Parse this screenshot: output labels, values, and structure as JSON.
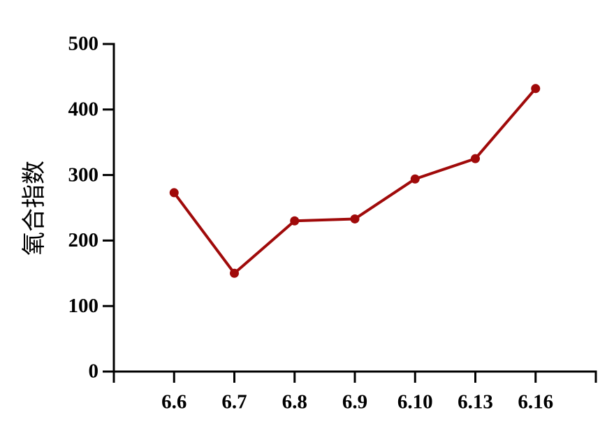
{
  "chart_data": {
    "type": "line",
    "y_label": "氧合指数",
    "categories": [
      "6.6",
      "6.7",
      "6.8",
      "6.9",
      "6.10",
      "6.13",
      "6.16"
    ],
    "series": [
      {
        "name": "氧合指数",
        "color": "#a00a0a",
        "values": [
          273,
          150,
          230,
          233,
          294,
          325,
          432
        ]
      }
    ],
    "ylim": [
      0,
      500
    ],
    "yticks": [
      0,
      100,
      200,
      300,
      400,
      500
    ],
    "grid": false
  }
}
